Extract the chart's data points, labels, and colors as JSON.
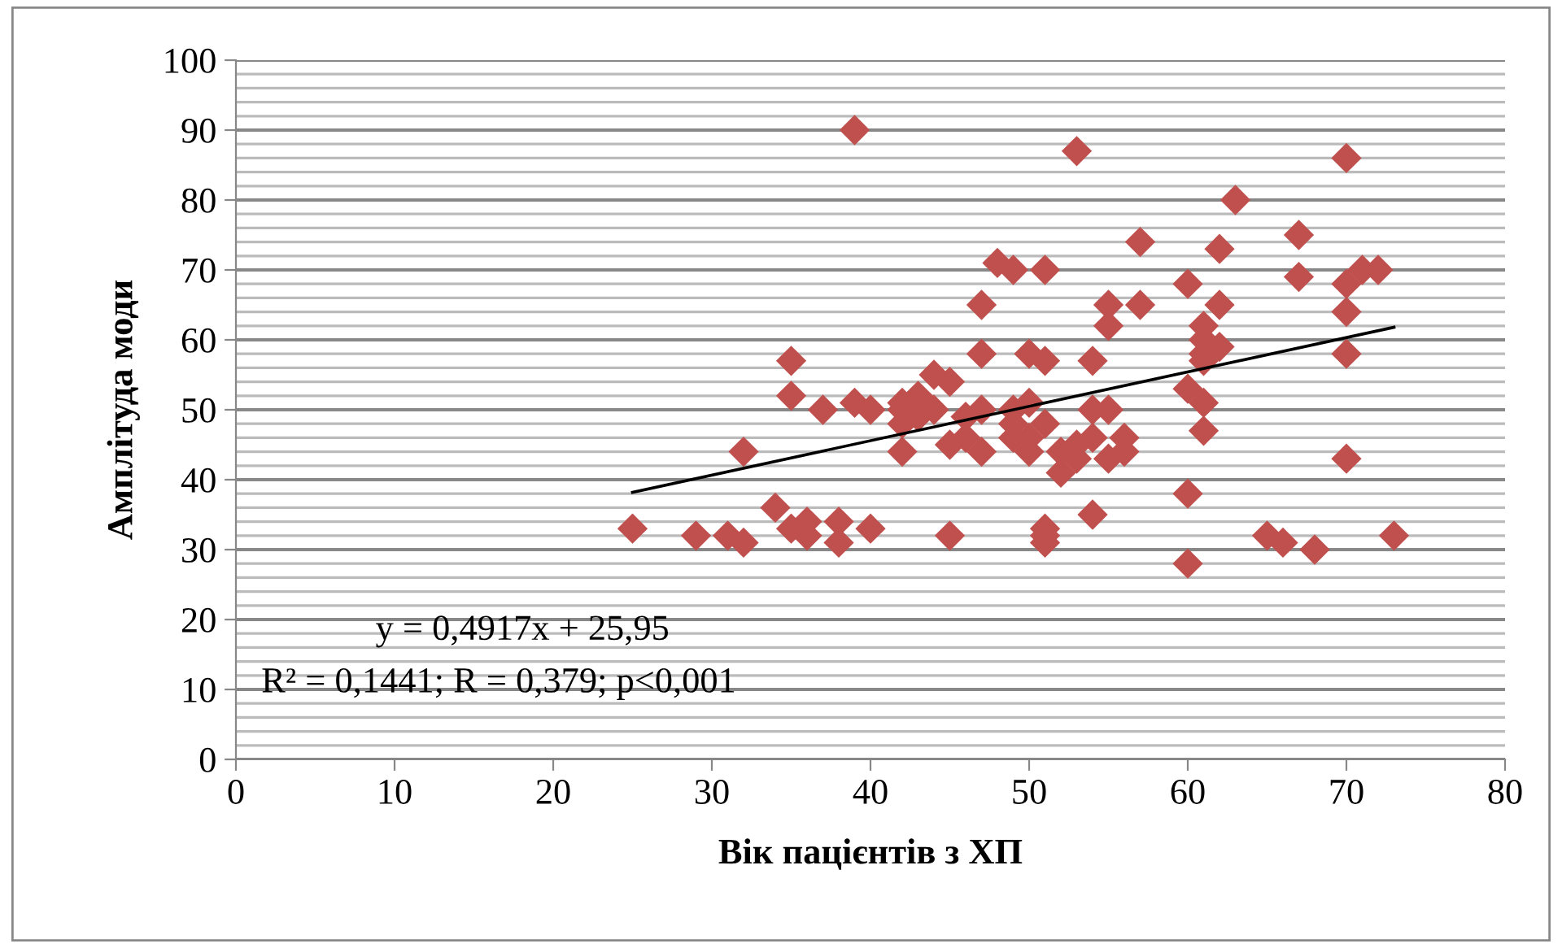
{
  "chart_data": {
    "type": "scatter",
    "xlabel": "Вік пацієнтів з ХП",
    "ylabel": "Амплітуда моди",
    "xlim": [
      0,
      80
    ],
    "xticks": [
      0,
      10,
      20,
      30,
      40,
      50,
      60,
      70,
      80
    ],
    "ylim": [
      0,
      100
    ],
    "yticks": [
      0,
      {
        "value": 2,
        "label": null
      },
      {
        "value": 4,
        "label": null
      },
      {
        "value": 6,
        "label": null
      },
      {
        "value": 8,
        "label": null
      },
      10,
      {
        "value": 12,
        "label": null
      },
      {
        "value": 14,
        "label": null
      },
      {
        "value": 16,
        "label": null
      },
      {
        "value": 18,
        "label": null
      },
      20,
      {
        "value": 22,
        "label": null
      },
      {
        "value": 24,
        "label": null
      },
      {
        "value": 26,
        "label": null
      },
      {
        "value": 28,
        "label": null
      },
      30,
      {
        "value": 32,
        "label": null
      },
      {
        "value": 34,
        "label": null
      },
      {
        "value": 36,
        "label": null
      },
      {
        "value": 38,
        "label": null
      },
      40,
      {
        "value": 42,
        "label": null
      },
      {
        "value": 44,
        "label": null
      },
      {
        "value": 46,
        "label": null
      },
      {
        "value": 48,
        "label": null
      },
      50,
      {
        "value": 52,
        "label": null
      },
      {
        "value": 54,
        "label": null
      },
      {
        "value": 56,
        "label": null
      },
      {
        "value": 58,
        "label": null
      },
      60,
      {
        "value": 62,
        "label": null
      },
      {
        "value": 64,
        "label": null
      },
      {
        "value": 66,
        "label": null
      },
      {
        "value": 68,
        "label": null
      },
      70,
      {
        "value": 72,
        "label": null
      },
      {
        "value": 74,
        "label": null
      },
      {
        "value": 76,
        "label": null
      },
      {
        "value": 78,
        "label": null
      },
      80,
      {
        "value": 82,
        "label": null
      },
      {
        "value": 84,
        "label": null
      },
      {
        "value": 86,
        "label": null
      },
      {
        "value": 88,
        "label": null
      },
      90,
      {
        "value": 92,
        "label": null
      },
      {
        "value": 94,
        "label": null
      },
      {
        "value": 96,
        "label": null
      },
      {
        "value": 98,
        "label": null
      },
      100
    ],
    "grid": "y",
    "legend": false,
    "series": [
      {
        "color": "#c0504d",
        "marker": "diamond",
        "x": [
          25,
          29,
          31,
          32,
          32,
          34,
          35,
          35,
          35,
          36,
          36,
          37,
          38,
          38,
          39,
          39,
          40,
          40,
          42,
          42,
          42,
          42,
          43,
          43,
          44,
          44,
          45,
          45,
          45,
          46,
          46,
          47,
          47,
          47,
          47,
          48,
          49,
          49,
          49,
          49,
          50,
          50,
          50,
          50,
          51,
          51,
          51,
          51,
          51,
          51,
          52,
          52,
          53,
          53,
          53,
          54,
          54,
          54,
          54,
          55,
          55,
          55,
          55,
          56,
          56,
          57,
          57,
          60,
          60,
          60,
          60,
          61,
          61,
          61,
          61,
          61,
          61,
          62,
          62,
          62,
          63,
          65,
          66,
          67,
          67,
          68,
          70,
          70,
          70,
          70,
          70,
          71,
          72,
          73
        ],
        "values": [
          33,
          32,
          32,
          31,
          44,
          36,
          33,
          52,
          57,
          34,
          32,
          50,
          34,
          31,
          51,
          90,
          50,
          33,
          44,
          48,
          50,
          51,
          49,
          52,
          50,
          55,
          54,
          45,
          32,
          49,
          46,
          44,
          50,
          58,
          65,
          71,
          70,
          46,
          48,
          50,
          58,
          51,
          44,
          46,
          70,
          57,
          48,
          33,
          32,
          31,
          41,
          44,
          87,
          43,
          45,
          57,
          50,
          46,
          35,
          65,
          62,
          50,
          43,
          46,
          44,
          74,
          65,
          68,
          53,
          38,
          28,
          62,
          60,
          57,
          51,
          47,
          58,
          73,
          65,
          59,
          80,
          32,
          31,
          75,
          69,
          30,
          86,
          68,
          64,
          58,
          43,
          70,
          70,
          32
        ]
      },
      {
        "type": "line",
        "color": "#000000",
        "marker": "none",
        "line_style": "solid",
        "x": [
          25,
          73
        ],
        "values": [
          38.2,
          61.8
        ]
      }
    ],
    "annotations": [
      {
        "text": "y = 0,4917x + 25,95"
      },
      {
        "text": "R² = 0,1441; R = 0,379; p<0,001"
      }
    ]
  }
}
